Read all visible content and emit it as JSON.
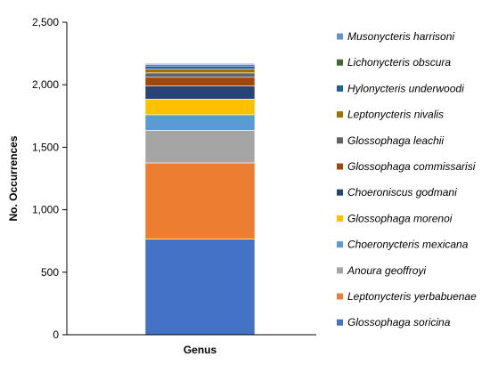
{
  "chart_data": {
    "type": "bar",
    "stacked": true,
    "categories": [
      "Genus"
    ],
    "xlabel": "Genus",
    "ylabel": "No. Occurrences",
    "ylim": [
      0,
      2500
    ],
    "yticks": [
      0,
      500,
      1000,
      1500,
      2000,
      2500
    ],
    "ytick_labels": [
      "0",
      "500",
      "1,000",
      "1,500",
      "2,000",
      "2,500"
    ],
    "grid": false,
    "legend_position": "right",
    "series": [
      {
        "name": "Glossophaga soricina",
        "values": [
          765
        ],
        "color": "#4472C4"
      },
      {
        "name": "Leptonycteris yerbabuenae",
        "values": [
          610
        ],
        "color": "#ED7D31"
      },
      {
        "name": "Anoura geoffroyi",
        "values": [
          260
        ],
        "color": "#A5A5A5"
      },
      {
        "name": "Choeronycteris mexicana",
        "values": [
          125
        ],
        "color": "#5B9BD5"
      },
      {
        "name": "Glossophaga morenoi",
        "values": [
          125
        ],
        "color": "#FFC000"
      },
      {
        "name": "Choeroniscus godmani",
        "values": [
          105
        ],
        "color": "#264478"
      },
      {
        "name": "Glossophaga commissarisi",
        "values": [
          70
        ],
        "color": "#9E480E"
      },
      {
        "name": "Glossophaga leachii",
        "values": [
          35
        ],
        "color": "#636363"
      },
      {
        "name": "Leptonycteris nivalis",
        "values": [
          30
        ],
        "color": "#997300"
      },
      {
        "name": "Hylonycteris underwoodi",
        "values": [
          25
        ],
        "color": "#255E91"
      },
      {
        "name": "Lichonycteris obscura",
        "values": [
          10
        ],
        "color": "#43682B"
      },
      {
        "name": "Musonycteris harrisoni",
        "values": [
          10
        ],
        "color": "#698ED0"
      }
    ]
  }
}
